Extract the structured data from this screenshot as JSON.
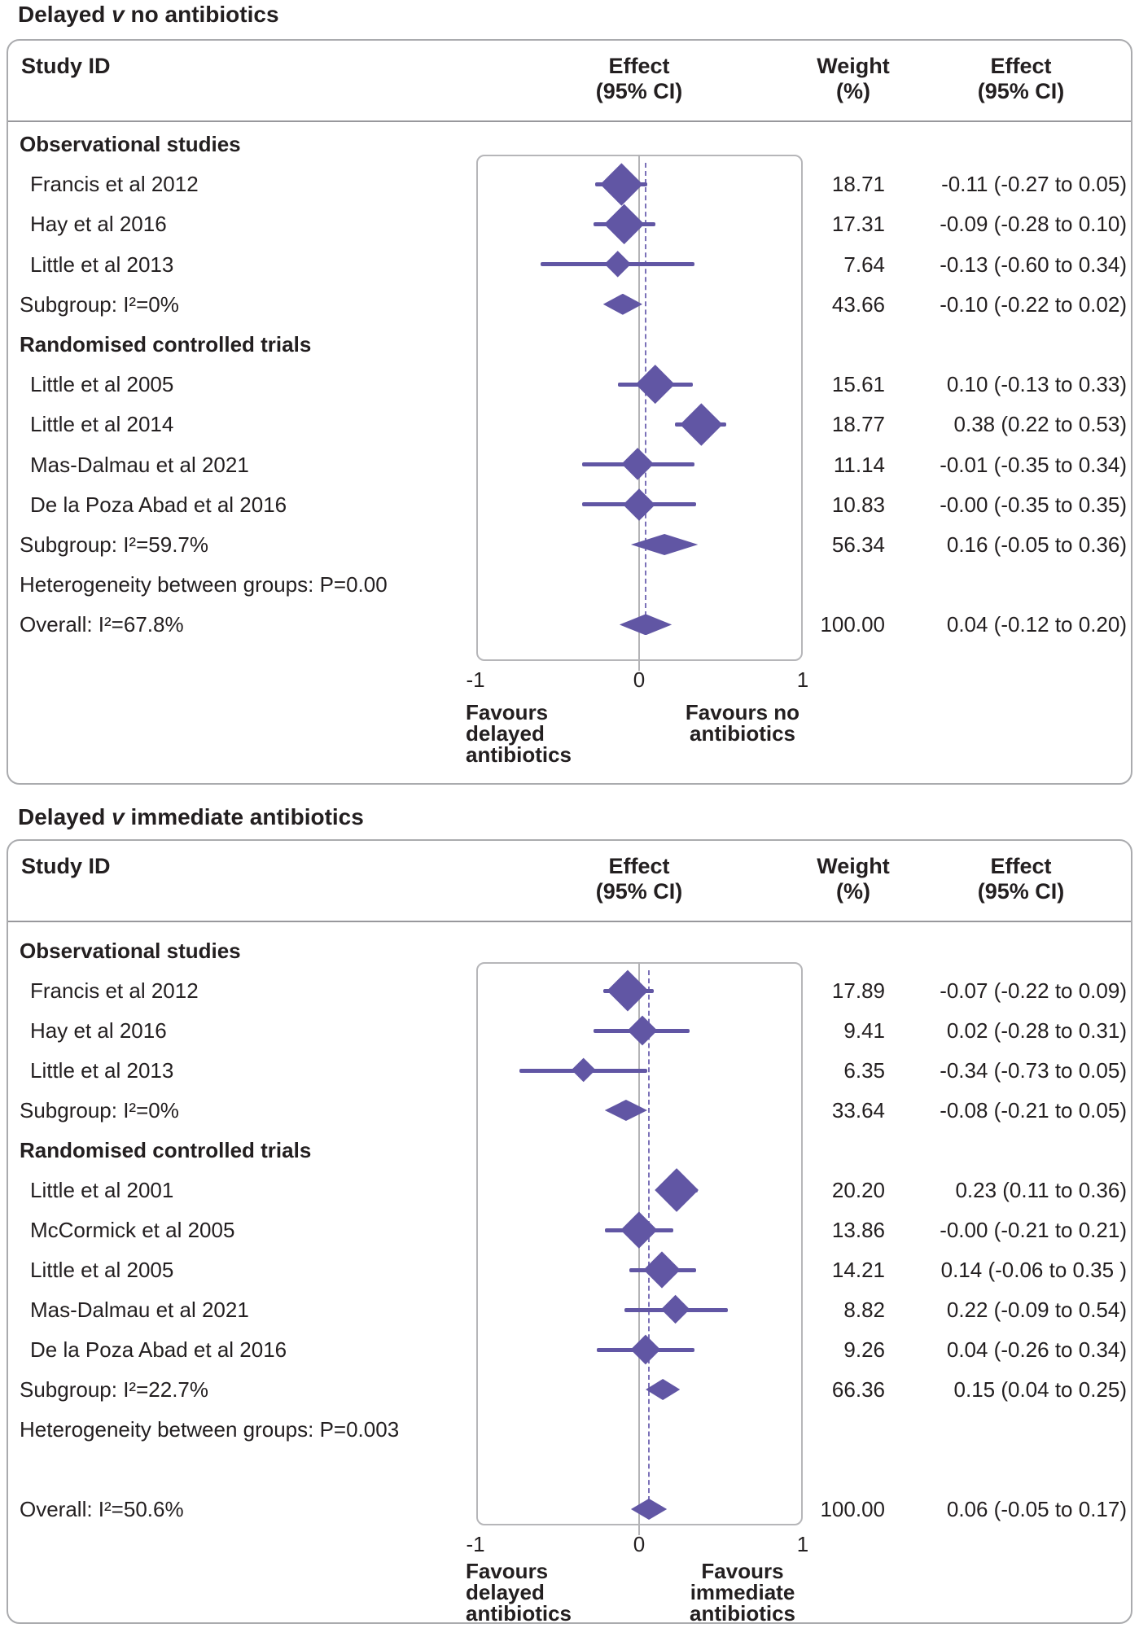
{
  "colors": {
    "marks_purple": "#6156a4",
    "dashed_purple": "#7b71b8",
    "zero_line_gray": "#b4b4b7",
    "panel_border_gray": "#aaabae",
    "text": "#231f20"
  },
  "chart_data": [
    {
      "type": "scatter",
      "subtype": "forest-plot",
      "title": {
        "pre": "Delayed ",
        "vs": "v",
        "post": " no antibiotics"
      },
      "header": {
        "study": "Study ID",
        "effect_l1": "Effect",
        "effect_l2": "(95% CI)",
        "weight_l1": "Weight",
        "weight_l2": "(%)",
        "effect2_l1": "Effect",
        "effect2_l2": "(95% CI)"
      },
      "xlim": [
        -1,
        1
      ],
      "grid": false,
      "ticks": [
        {
          "v": -1,
          "label": "-1"
        },
        {
          "v": 0,
          "label": "0"
        },
        {
          "v": 1,
          "label": "1"
        }
      ],
      "favours_left": [
        "Favours",
        "delayed",
        "antibiotics"
      ],
      "favours_right": [
        "Favours no",
        "antibiotics"
      ],
      "dashed_at": 0.04,
      "rows": [
        {
          "kind": "group",
          "label": "Observational studies"
        },
        {
          "kind": "study",
          "label": "Francis et al 2012",
          "effect": -0.11,
          "lo": -0.27,
          "hi": 0.05,
          "weight": 18.71,
          "weight_text": "18.71",
          "effect_text": "-0.11 (-0.27 to 0.05)"
        },
        {
          "kind": "study",
          "label": "Hay et al 2016",
          "effect": -0.09,
          "lo": -0.28,
          "hi": 0.1,
          "weight": 17.31,
          "weight_text": "17.31",
          "effect_text": "-0.09 (-0.28 to 0.10)"
        },
        {
          "kind": "study",
          "label": "Little et al 2013",
          "effect": -0.13,
          "lo": -0.6,
          "hi": 0.34,
          "weight": 7.64,
          "weight_text": "7.64",
          "effect_text": "-0.13 (-0.60 to 0.34)"
        },
        {
          "kind": "subgroup",
          "label": "Subgroup: I²=0%",
          "effect": -0.1,
          "lo": -0.22,
          "hi": 0.02,
          "weight_text": "43.66",
          "effect_text": "-0.10 (-0.22 to 0.02)"
        },
        {
          "kind": "group",
          "label": "Randomised controlled trials"
        },
        {
          "kind": "study",
          "label": "Little et al 2005",
          "effect": 0.1,
          "lo": -0.13,
          "hi": 0.33,
          "weight": 15.61,
          "weight_text": "15.61",
          "effect_text": "0.10 (-0.13 to 0.33)"
        },
        {
          "kind": "study",
          "label": "Little et al 2014",
          "effect": 0.38,
          "lo": 0.22,
          "hi": 0.53,
          "weight": 18.77,
          "weight_text": "18.77",
          "effect_text": "0.38 (0.22 to 0.53)"
        },
        {
          "kind": "study",
          "label": "Mas-Dalmau et al 2021",
          "effect": -0.01,
          "lo": -0.35,
          "hi": 0.34,
          "weight": 11.14,
          "weight_text": "11.14",
          "effect_text": "-0.01 (-0.35 to 0.34)"
        },
        {
          "kind": "study",
          "label": "De la Poza Abad et al 2016",
          "effect": 0.0,
          "lo": -0.35,
          "hi": 0.35,
          "weight": 10.83,
          "weight_text": "10.83",
          "effect_text": "-0.00 (-0.35 to 0.35)"
        },
        {
          "kind": "subgroup",
          "label": "Subgroup: I²=59.7%",
          "effect": 0.16,
          "lo": -0.05,
          "hi": 0.36,
          "weight_text": "56.34",
          "effect_text": "0.16 (-0.05 to 0.36)"
        },
        {
          "kind": "text",
          "label": "Heterogeneity between groups: P=0.00"
        },
        {
          "kind": "overall",
          "label": "Overall: I²=67.8%",
          "effect": 0.04,
          "lo": -0.12,
          "hi": 0.2,
          "weight_text": "100.00",
          "effect_text": "0.04 (-0.12 to 0.20)"
        }
      ]
    },
    {
      "type": "scatter",
      "subtype": "forest-plot",
      "title": {
        "pre": "Delayed ",
        "vs": "v",
        "post": " immediate antibiotics"
      },
      "header": {
        "study": "Study ID",
        "effect_l1": "Effect",
        "effect_l2": "(95% CI)",
        "weight_l1": "Weight",
        "weight_l2": "(%)",
        "effect2_l1": "Effect",
        "effect2_l2": "(95% CI)"
      },
      "xlim": [
        -1,
        1
      ],
      "grid": false,
      "ticks": [
        {
          "v": -1,
          "label": "-1"
        },
        {
          "v": 0,
          "label": "0"
        },
        {
          "v": 1,
          "label": "1"
        }
      ],
      "favours_left": [
        "Favours",
        "delayed",
        "antibiotics"
      ],
      "favours_right": [
        "Favours",
        "immediate",
        "antibiotics"
      ],
      "dashed_at": 0.06,
      "rows": [
        {
          "kind": "group",
          "label": "Observational studies"
        },
        {
          "kind": "study",
          "label": "Francis et al 2012",
          "effect": -0.07,
          "lo": -0.22,
          "hi": 0.09,
          "weight": 17.89,
          "weight_text": "17.89",
          "effect_text": "-0.07 (-0.22 to 0.09)"
        },
        {
          "kind": "study",
          "label": "Hay et al 2016",
          "effect": 0.02,
          "lo": -0.28,
          "hi": 0.31,
          "weight": 9.41,
          "weight_text": "9.41",
          "effect_text": "0.02 (-0.28 to 0.31)"
        },
        {
          "kind": "study",
          "label": "Little et al 2013",
          "effect": -0.34,
          "lo": -0.73,
          "hi": 0.05,
          "weight": 6.35,
          "weight_text": "6.35",
          "effect_text": "-0.34 (-0.73 to 0.05)"
        },
        {
          "kind": "subgroup",
          "label": "Subgroup: I²=0%",
          "effect": -0.08,
          "lo": -0.21,
          "hi": 0.05,
          "weight_text": "33.64",
          "effect_text": "-0.08 (-0.21 to 0.05)"
        },
        {
          "kind": "group",
          "label": "Randomised controlled trials"
        },
        {
          "kind": "study",
          "label": "Little et al 2001",
          "effect": 0.23,
          "lo": 0.11,
          "hi": 0.36,
          "weight": 20.2,
          "weight_text": "20.20",
          "effect_text": "0.23 (0.11 to 0.36)"
        },
        {
          "kind": "study",
          "label": "McCormick et al 2005",
          "effect": 0.0,
          "lo": -0.21,
          "hi": 0.21,
          "weight": 13.86,
          "weight_text": "13.86",
          "effect_text": "-0.00 (-0.21 to 0.21)"
        },
        {
          "kind": "study",
          "label": "Little et al 2005",
          "effect": 0.14,
          "lo": -0.06,
          "hi": 0.35,
          "weight": 14.21,
          "weight_text": "14.21",
          "effect_text": "0.14 (-0.06 to 0.35 )"
        },
        {
          "kind": "study",
          "label": "Mas-Dalmau et al 2021",
          "effect": 0.22,
          "lo": -0.09,
          "hi": 0.54,
          "weight": 8.82,
          "weight_text": "8.82",
          "effect_text": "0.22 (-0.09 to 0.54)"
        },
        {
          "kind": "study",
          "label": "De la Poza Abad et al 2016",
          "effect": 0.04,
          "lo": -0.26,
          "hi": 0.34,
          "weight": 9.26,
          "weight_text": "9.26",
          "effect_text": "0.04 (-0.26 to 0.34)"
        },
        {
          "kind": "subgroup",
          "label": "Subgroup: I²=22.7%",
          "effect": 0.15,
          "lo": 0.04,
          "hi": 0.25,
          "weight_text": "66.36",
          "effect_text": "0.15 (0.04 to 0.25)"
        },
        {
          "kind": "text",
          "label": "Heterogeneity between groups: P=0.003"
        },
        {
          "kind": "spacer",
          "label": ""
        },
        {
          "kind": "overall",
          "label": "Overall: I²=50.6%",
          "effect": 0.06,
          "lo": -0.05,
          "hi": 0.17,
          "weight_text": "100.00",
          "effect_text": "0.06 (-0.05 to 0.17)"
        }
      ]
    }
  ]
}
